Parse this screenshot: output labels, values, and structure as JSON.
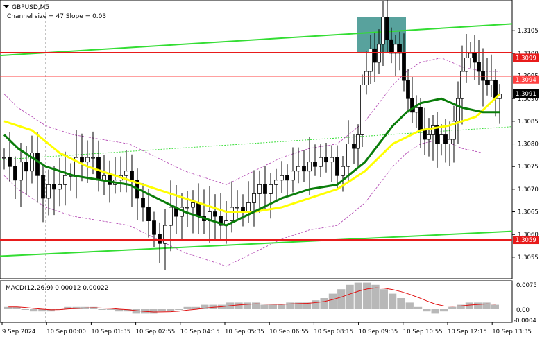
{
  "window": {
    "symbol": "GBPUSD,M5",
    "indicator_text": "Channel size = 47 Slope = 0.03",
    "macd_label": "MACD(12,26,9) 0.00012 0.00022",
    "collapse_icon": "triangle-down-icon"
  },
  "price_axis": {
    "ticks": [
      "1.3105",
      "1.3100",
      "1.3095",
      "1.3090",
      "1.3085",
      "1.3080",
      "1.3075",
      "1.3070",
      "1.3065",
      "1.3060",
      "1.3055"
    ],
    "tags": [
      {
        "text": "1.3099",
        "value": 1.3099,
        "color": "#e81b1b",
        "text_color": "#ffffff"
      },
      {
        "text": "1.3094",
        "value": 1.30942,
        "color": "#ff4040",
        "text_color": "#ffffff"
      },
      {
        "text": "1.3091",
        "value": 1.30911,
        "color": "#000000",
        "text_color": "#ffffff"
      },
      {
        "text": "1.3059",
        "value": 1.30588,
        "color": "#e81b1b",
        "text_color": "#ffffff"
      }
    ]
  },
  "macd_axis": {
    "ticks": [
      "0.0075",
      "0.00",
      "-0.0004"
    ]
  },
  "time_axis": {
    "labels": [
      "9 Sep 2024",
      "10 Sep 00:00",
      "10 Sep 01:35",
      "10 Sep 02:55",
      "10 Sep 04:15",
      "10 Sep 05:35",
      "10 Sep 06:55",
      "10 Sep 08:15",
      "10 Sep 09:35",
      "10 Sep 10:55",
      "10 Sep 12:15",
      "10 Sep 13:35"
    ]
  },
  "colors": {
    "up_candle": "#ffffff",
    "down_candle": "#000000",
    "fast_ma": "#ffff00",
    "slow_ma": "#0a7d0a",
    "channel": "#33dd33",
    "level": "#e81b1b",
    "zone": "#2e8b84",
    "envelope": "#b040b0",
    "histogram": "#b8b8b8",
    "signal": "#e01010"
  },
  "chart_data": {
    "type": "candlestick",
    "symbol": "GBPUSD",
    "timeframe": "M5",
    "ylim": [
      1.3051,
      1.3111
    ],
    "x_labels": [
      "9 Sep 2024",
      "10 Sep 00:00",
      "10 Sep 01:35",
      "10 Sep 02:55",
      "10 Sep 04:15",
      "10 Sep 05:35",
      "10 Sep 06:55",
      "10 Sep 08:15",
      "10 Sep 09:35",
      "10 Sep 10:55",
      "10 Sep 12:15",
      "10 Sep 13:35"
    ],
    "key_levels": [
      1.3099,
      1.3059
    ],
    "current_price": 1.30911,
    "close_path": [
      [
        0,
        1.3077
      ],
      [
        8,
        1.3075
      ],
      [
        16,
        1.3072
      ],
      [
        24,
        1.3076
      ],
      [
        32,
        1.3074
      ],
      [
        40,
        1.3078
      ],
      [
        48,
        1.3073
      ],
      [
        56,
        1.3068
      ],
      [
        64,
        1.3071
      ],
      [
        72,
        1.307
      ],
      [
        80,
        1.3071
      ],
      [
        88,
        1.3073
      ],
      [
        96,
        1.3073
      ],
      [
        104,
        1.3077
      ],
      [
        112,
        1.3076
      ],
      [
        120,
        1.3077
      ],
      [
        128,
        1.3077
      ],
      [
        136,
        1.3072
      ],
      [
        144,
        1.3073
      ],
      [
        152,
        1.3071
      ],
      [
        160,
        1.3072
      ],
      [
        168,
        1.3073
      ],
      [
        176,
        1.3074
      ],
      [
        184,
        1.3072
      ],
      [
        192,
        1.3068
      ],
      [
        200,
        1.3066
      ],
      [
        208,
        1.3063
      ],
      [
        216,
        1.306
      ],
      [
        224,
        1.3058
      ],
      [
        232,
        1.3062
      ],
      [
        240,
        1.3066
      ],
      [
        248,
        1.3064
      ],
      [
        256,
        1.3066
      ],
      [
        264,
        1.3066
      ],
      [
        272,
        1.3067
      ],
      [
        280,
        1.3064
      ],
      [
        288,
        1.3063
      ],
      [
        296,
        1.3065
      ],
      [
        304,
        1.3064
      ],
      [
        312,
        1.3062
      ],
      [
        320,
        1.3063
      ],
      [
        328,
        1.3066
      ],
      [
        336,
        1.3066
      ],
      [
        344,
        1.3065
      ],
      [
        352,
        1.3067
      ],
      [
        360,
        1.3069
      ],
      [
        368,
        1.3071
      ],
      [
        376,
        1.3069
      ],
      [
        384,
        1.3071
      ],
      [
        392,
        1.3072
      ],
      [
        400,
        1.3073
      ],
      [
        408,
        1.3072
      ],
      [
        416,
        1.3074
      ],
      [
        424,
        1.3075
      ],
      [
        432,
        1.3074
      ],
      [
        440,
        1.3076
      ],
      [
        448,
        1.3075
      ],
      [
        456,
        1.3077
      ],
      [
        464,
        1.3076
      ],
      [
        472,
        1.3077
      ],
      [
        480,
        1.3073
      ],
      [
        488,
        1.3075
      ],
      [
        496,
        1.308
      ],
      [
        504,
        1.3079
      ],
      [
        510,
        1.3082
      ],
      [
        516,
        1.3093
      ],
      [
        522,
        1.3096
      ],
      [
        528,
        1.3101
      ],
      [
        534,
        1.3098
      ],
      [
        540,
        1.3102
      ],
      [
        546,
        1.3108
      ],
      [
        552,
        1.3103
      ],
      [
        558,
        1.31
      ],
      [
        564,
        1.3102
      ],
      [
        570,
        1.31
      ],
      [
        576,
        1.3094
      ],
      [
        582,
        1.309
      ],
      [
        588,
        1.3087
      ],
      [
        594,
        1.3088
      ],
      [
        600,
        1.3083
      ],
      [
        606,
        1.3081
      ],
      [
        612,
        1.3082
      ],
      [
        618,
        1.3084
      ],
      [
        624,
        1.308
      ],
      [
        630,
        1.3082
      ],
      [
        636,
        1.308
      ],
      [
        642,
        1.3081
      ],
      [
        648,
        1.3085
      ],
      [
        654,
        1.309
      ],
      [
        660,
        1.3096
      ],
      [
        666,
        1.3099
      ],
      [
        672,
        1.31
      ],
      [
        678,
        1.3098
      ],
      [
        684,
        1.3096
      ],
      [
        690,
        1.3094
      ],
      [
        696,
        1.3093
      ],
      [
        702,
        1.3094
      ],
      [
        708,
        1.309
      ],
      [
        714,
        1.3091
      ]
    ],
    "fast_ma_path": [
      [
        0,
        1.3085
      ],
      [
        40,
        1.3083
      ],
      [
        80,
        1.3078
      ],
      [
        120,
        1.3075
      ],
      [
        160,
        1.3073
      ],
      [
        200,
        1.3071
      ],
      [
        240,
        1.3069
      ],
      [
        280,
        1.3067
      ],
      [
        320,
        1.3065
      ],
      [
        360,
        1.3065
      ],
      [
        400,
        1.3066
      ],
      [
        440,
        1.3068
      ],
      [
        480,
        1.307
      ],
      [
        520,
        1.3074
      ],
      [
        560,
        1.308
      ],
      [
        600,
        1.3083
      ],
      [
        640,
        1.3084
      ],
      [
        680,
        1.3086
      ],
      [
        714,
        1.3091
      ]
    ],
    "slow_ma_path": [
      [
        0,
        1.3082
      ],
      [
        20,
        1.3079
      ],
      [
        60,
        1.3075
      ],
      [
        100,
        1.3073
      ],
      [
        140,
        1.3072
      ],
      [
        180,
        1.3071
      ],
      [
        220,
        1.3068
      ],
      [
        260,
        1.3065
      ],
      [
        300,
        1.3063
      ],
      [
        320,
        1.3062
      ],
      [
        360,
        1.3065
      ],
      [
        400,
        1.3068
      ],
      [
        440,
        1.307
      ],
      [
        480,
        1.3071
      ],
      [
        520,
        1.3076
      ],
      [
        560,
        1.3084
      ],
      [
        580,
        1.3087
      ],
      [
        600,
        1.3089
      ],
      [
        630,
        1.309
      ],
      [
        660,
        1.3088
      ],
      [
        690,
        1.3087
      ],
      [
        714,
        1.3087
      ]
    ],
    "macd_hist": [
      1,
      1,
      0,
      -1,
      -1,
      -1,
      0,
      1,
      1,
      1,
      1,
      0,
      0,
      -1,
      -1,
      -2,
      -2,
      -2,
      -1,
      -1,
      0,
      1,
      1,
      2,
      2,
      2,
      3,
      3,
      3,
      3,
      2,
      2,
      2,
      3,
      3,
      3,
      4,
      5,
      7,
      9,
      11,
      12,
      12,
      11,
      9,
      7,
      5,
      3,
      1,
      -1,
      -2,
      -1,
      1,
      2,
      3,
      3,
      3,
      2
    ]
  }
}
